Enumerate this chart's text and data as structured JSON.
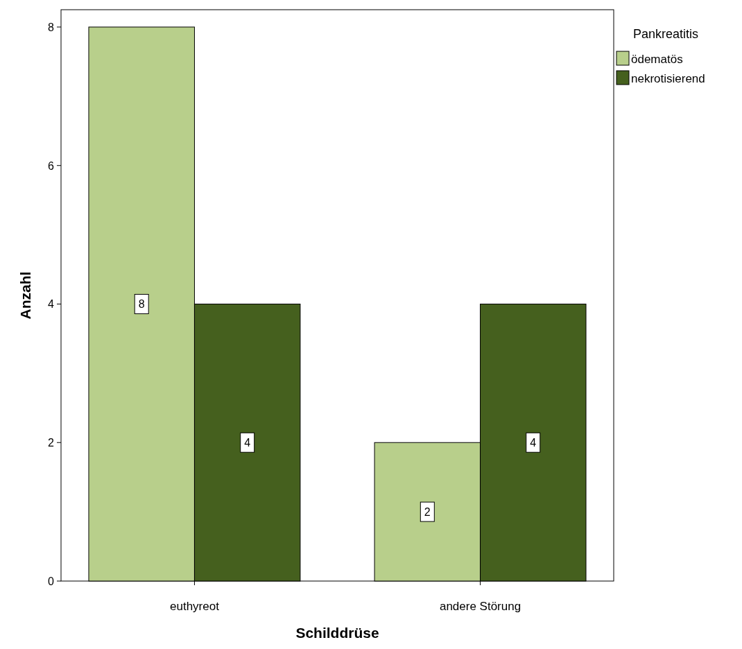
{
  "chart_data": {
    "type": "bar",
    "xlabel": "Schilddrüse",
    "ylabel": "Anzahl",
    "legend_title": "Pankreatitis",
    "categories": [
      "euthyreot",
      "andere Störung"
    ],
    "series": [
      {
        "name": "ödematös",
        "color": "#b8cf8b",
        "values": [
          8,
          2
        ]
      },
      {
        "name": "nekrotisierend",
        "color": "#45601e",
        "values": [
          4,
          4
        ]
      }
    ],
    "ylim": [
      0,
      8.25
    ],
    "yticks": [
      0,
      2,
      4,
      6,
      8
    ],
    "grid": false,
    "legend": "right",
    "data_labels": true
  }
}
